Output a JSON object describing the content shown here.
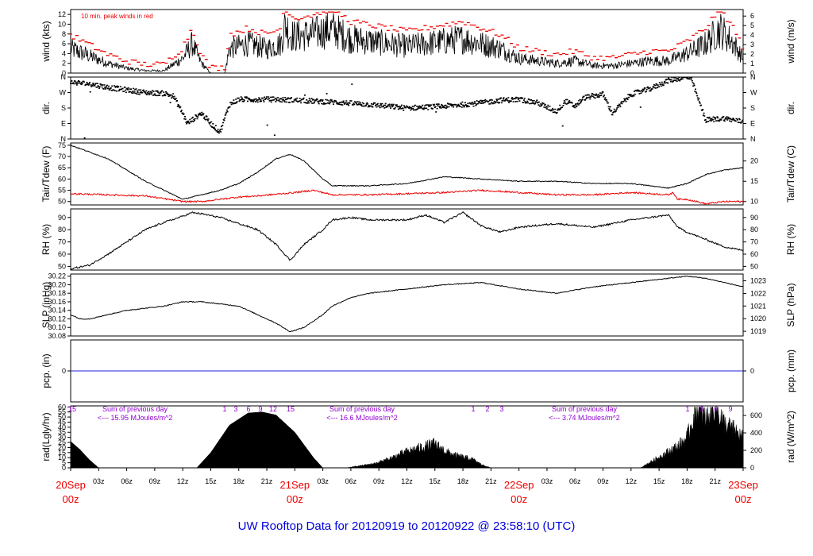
{
  "footer": "UW Rooftop Data for 20120919  to  20120922 @ 23:58:10  (UTC)",
  "colors": {
    "black": "#000000",
    "red": "#ee0000",
    "blue": "#2222dd",
    "purple": "#9400d3",
    "footer_blue": "#0000dd"
  },
  "chart_data": [
    {
      "id": "wind",
      "type": "line",
      "left_label": "wind (kts)",
      "right_label": "wind (m/s)",
      "left_ticks": [
        "0",
        "2",
        "4",
        "6",
        "8",
        "10",
        "12"
      ],
      "right_ticks": [
        "0",
        "1",
        "2",
        "3",
        "4",
        "5",
        "6"
      ],
      "ylim": [
        0,
        13
      ],
      "annotation": "10 min. peak winds in red",
      "series_key_points": {
        "hours": [
          0,
          2,
          4,
          6,
          8,
          10,
          12,
          13,
          14,
          15,
          16,
          16.5,
          17,
          19,
          21,
          22.5,
          23,
          23.5,
          24,
          26,
          28,
          30,
          32,
          34,
          36,
          38,
          40,
          42,
          44,
          46,
          48,
          50,
          52,
          54,
          56,
          58,
          60,
          62,
          64,
          66,
          68,
          69.5,
          71,
          72
        ],
        "values": [
          5,
          3.5,
          2,
          1,
          0.5,
          0.5,
          3,
          6,
          2,
          0,
          0,
          0,
          5,
          6,
          5,
          6,
          10,
          8,
          7.5,
          8,
          9,
          7,
          6.5,
          6,
          5.5,
          6,
          6.5,
          7,
          6,
          5,
          3,
          2.5,
          2,
          2.5,
          1.5,
          1.5,
          2,
          2.5,
          2.5,
          4,
          6,
          9,
          6,
          3
        ]
      }
    },
    {
      "id": "dir",
      "type": "scatter",
      "left_label": "dir.",
      "right_label": "dir.",
      "left_ticks": [
        "N",
        "E",
        "S",
        "W",
        "N"
      ],
      "right_ticks": [
        "N",
        "E",
        "S",
        "W",
        "N"
      ],
      "ylim": [
        0,
        360
      ],
      "series_key_points": {
        "hours": [
          0,
          2,
          4,
          6,
          8,
          10,
          11,
          12,
          12.5,
          13,
          14,
          15,
          16,
          17,
          18,
          20,
          22,
          24,
          28,
          32,
          36,
          40,
          44,
          46,
          48,
          50,
          52,
          53,
          54,
          55,
          56,
          57,
          58,
          60,
          62,
          64,
          66,
          66.5,
          68,
          70,
          72
        ],
        "values": [
          330,
          320,
          300,
          285,
          270,
          265,
          250,
          150,
          90,
          110,
          150,
          90,
          40,
          200,
          230,
          230,
          230,
          225,
          215,
          200,
          180,
          190,
          210,
          225,
          230,
          210,
          160,
          220,
          190,
          240,
          250,
          260,
          150,
          260,
          290,
          340,
          360,
          340,
          110,
          120,
          100
        ]
      }
    },
    {
      "id": "temp",
      "type": "line",
      "left_label": "Tair/Tdew (F)",
      "right_label": "Tair/Tdew (C)",
      "left_ticks": [
        "50",
        "55",
        "60",
        "65",
        "70",
        "75"
      ],
      "right_ticks": [
        "10",
        "15",
        "20"
      ],
      "ylim": [
        48.5,
        76
      ],
      "series": [
        {
          "hours": [
            0,
            2,
            4,
            6,
            8,
            10,
            12,
            13,
            14,
            16,
            18,
            20,
            22,
            23.5,
            25,
            27,
            28,
            30,
            32,
            36,
            40,
            44,
            48,
            52,
            56,
            60,
            64,
            66,
            68,
            70,
            72
          ],
          "values": [
            75,
            72,
            69,
            64,
            59,
            55,
            51,
            52,
            53,
            55,
            58,
            63,
            69,
            71,
            68,
            60,
            57,
            57,
            57,
            58,
            61,
            60,
            59,
            59,
            58,
            58,
            56,
            58,
            62,
            64,
            65
          ]
        },
        {
          "hours": [
            0,
            4,
            8,
            12,
            14,
            18,
            20,
            24,
            26,
            28,
            32,
            36,
            40,
            44,
            48,
            52,
            56,
            60,
            64,
            64.5,
            65,
            66,
            68,
            70,
            72
          ],
          "values": [
            53.5,
            53,
            52.5,
            50,
            50,
            52,
            52.5,
            54,
            55,
            53,
            53,
            53.5,
            54,
            55,
            54,
            53,
            53,
            54,
            53,
            54,
            51,
            51,
            49,
            50,
            50
          ]
        }
      ]
    },
    {
      "id": "rh",
      "type": "line",
      "left_label": "RH (%)",
      "right_label": "RH (%)",
      "left_ticks": [
        "50",
        "60",
        "70",
        "80",
        "90"
      ],
      "right_ticks": [
        "50",
        "60",
        "70",
        "80",
        "90"
      ],
      "ylim": [
        47,
        97
      ],
      "series_key_points": {
        "hours": [
          0,
          2,
          4,
          6,
          8,
          10,
          12,
          13,
          14,
          16,
          18,
          20,
          22,
          23.5,
          25,
          27,
          28,
          30,
          32,
          36,
          38,
          40,
          42,
          44,
          46,
          48,
          52,
          56,
          60,
          62,
          64,
          65,
          66,
          68,
          70,
          72
        ],
        "values": [
          48,
          51,
          60,
          70,
          80,
          86,
          91,
          94,
          93,
          90,
          85,
          80,
          68,
          55,
          68,
          80,
          88,
          90,
          88,
          88,
          92,
          86,
          94,
          83,
          78,
          82,
          85,
          82,
          88,
          90,
          92,
          82,
          78,
          72,
          66,
          63
        ]
      }
    },
    {
      "id": "slp",
      "type": "line",
      "left_label": "SLP (inHg)",
      "right_label": "SLP (hPa)",
      "left_ticks": [
        "30.08",
        "30.10",
        "30.12",
        "30.14",
        "30.16",
        "30.18",
        "30.20",
        "30.22"
      ],
      "right_ticks": [
        "1019",
        "1020",
        "1021",
        "1022",
        "1023"
      ],
      "ylim": [
        30.08,
        30.225
      ],
      "series_key_points": {
        "hours": [
          0,
          1,
          2,
          4,
          6,
          8,
          10,
          12,
          14,
          16,
          18,
          20,
          22,
          23.5,
          25,
          27,
          28,
          30,
          32,
          36,
          40,
          44,
          48,
          52,
          56,
          60,
          64,
          66,
          68,
          70,
          72
        ],
        "values": [
          30.13,
          30.12,
          30.12,
          30.13,
          30.14,
          30.145,
          30.15,
          30.16,
          30.16,
          30.155,
          30.15,
          30.13,
          30.11,
          30.09,
          30.1,
          30.13,
          30.15,
          30.17,
          30.18,
          30.19,
          30.2,
          30.205,
          30.19,
          30.18,
          30.195,
          30.205,
          30.215,
          30.22,
          30.215,
          30.205,
          30.195
        ]
      }
    },
    {
      "id": "pcp",
      "type": "line",
      "left_label": "pcp. (in)",
      "right_label": "pcp. (mm)",
      "left_ticks": [
        "0"
      ],
      "right_ticks": [
        "0"
      ],
      "ylim": [
        -1,
        1
      ],
      "values": [
        0,
        0
      ]
    },
    {
      "id": "rad",
      "type": "area",
      "left_label": "rad(Lgly/hr)",
      "right_label": "rad (W/m^2)",
      "left_ticks": [
        "0",
        "5",
        "10",
        "15",
        "20",
        "25",
        "30",
        "35",
        "40",
        "45",
        "50",
        "55",
        "60"
      ],
      "right_ticks": [
        "0",
        "200",
        "400",
        "600"
      ],
      "ylim": [
        0,
        61
      ],
      "series_key_points": {
        "hours": [
          0,
          1,
          2,
          3,
          13.5,
          15,
          17,
          19,
          20.5,
          22,
          24,
          26,
          27,
          29.5,
          31,
          32.5,
          34,
          36,
          38,
          39,
          40,
          41,
          42,
          43,
          44,
          45,
          48,
          61,
          63,
          65,
          66,
          67,
          68,
          69,
          70,
          71,
          72
        ],
        "values": [
          26,
          18,
          8,
          0,
          0,
          15,
          42,
          54,
          55,
          52,
          35,
          10,
          0,
          0,
          2,
          4,
          8,
          15,
          20,
          22,
          16,
          12,
          10,
          8,
          3,
          0,
          0,
          0,
          10,
          20,
          28,
          55,
          45,
          60,
          40,
          35,
          28
        ]
      },
      "sum_label": "Sum of previous day",
      "sums": [
        "<--- 15.95 MJoules/m^2",
        "<--- 16.6 MJoules/m^2",
        "<--- 3.74 MJoules/m^2"
      ],
      "hour_marks": [
        "15",
        "1",
        "3",
        "6",
        "9",
        "12",
        "15",
        "1",
        "2",
        "3",
        "1",
        "3",
        "6",
        "9"
      ]
    }
  ],
  "x_axis": {
    "hours_range": [
      0,
      72
    ],
    "minor_ticks": [
      "03z",
      "06z",
      "09z",
      "12z",
      "15z",
      "18z",
      "21z",
      "03z",
      "06z",
      "09z",
      "12z",
      "15z",
      "18z",
      "21z",
      "03z",
      "06z",
      "09z",
      "12z",
      "15z",
      "18z",
      "21z"
    ],
    "major_dates": [
      "20Sep",
      "21Sep",
      "22Sep",
      "23Sep"
    ],
    "major_time": "00z"
  }
}
